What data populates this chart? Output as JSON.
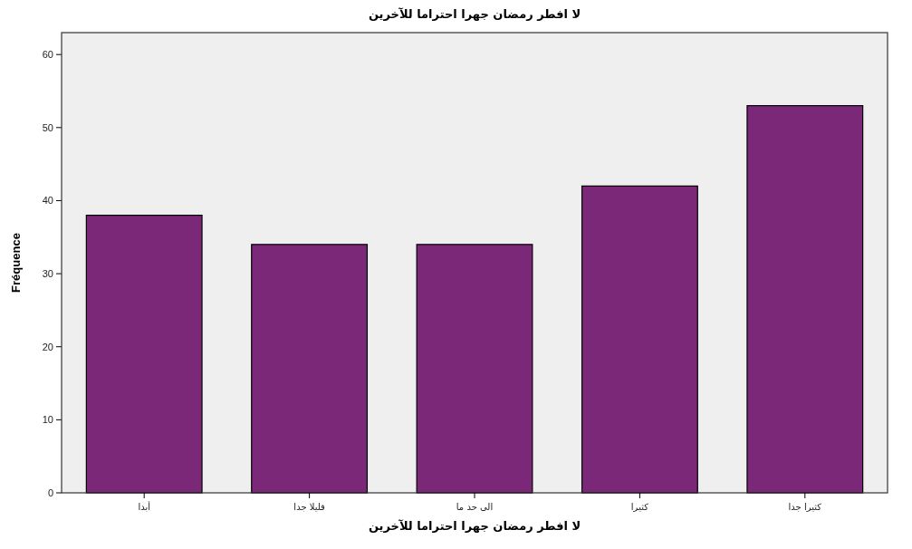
{
  "chart_data": {
    "type": "bar",
    "title": "لا افطر رمضان جهرا احتراما للآخرين",
    "xlabel": "لا افطر رمضان جهرا احتراما للآخرين",
    "ylabel": "Fréquence",
    "categories": [
      "أبدا",
      "قليلا جدا",
      "الى حد ما",
      "كثيرا",
      "كثيرا جدا"
    ],
    "values": [
      38,
      34,
      34,
      42,
      53
    ],
    "color": "#7b2878",
    "ylim": [
      0,
      63
    ],
    "yticks": [
      0,
      10,
      20,
      30,
      40,
      50,
      60
    ],
    "grid": false
  }
}
